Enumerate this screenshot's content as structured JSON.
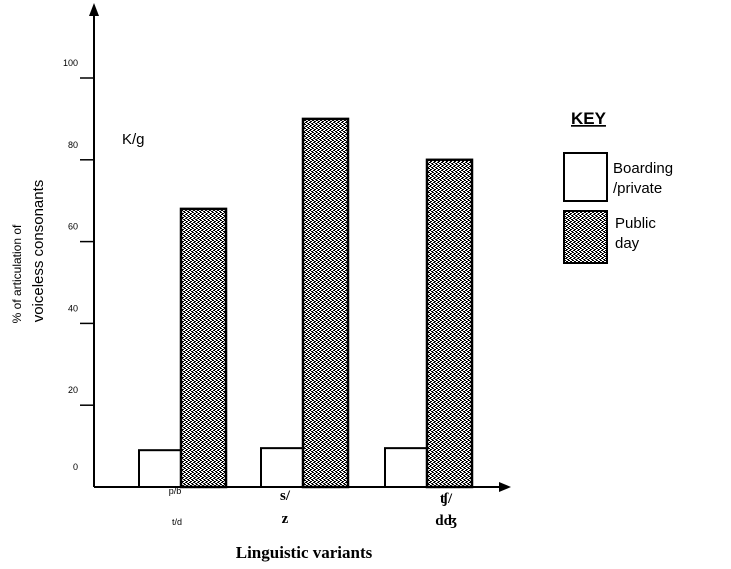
{
  "chart_data": {
    "type": "bar",
    "xlabel": "Linguistic variants",
    "ylabel_line1": "% of articulation of",
    "ylabel_line2": "voiceless consonants",
    "annotation": "K/g",
    "ylim": [
      0,
      100
    ],
    "yticks": [
      0,
      20,
      40,
      60,
      80,
      100
    ],
    "grid": false,
    "legend_position": "right",
    "categories": [
      {
        "line1": "p/b",
        "line2": "t/d",
        "style": "small"
      },
      {
        "line1": "s/",
        "line2": "z",
        "style": "big"
      },
      {
        "line1": "ʧ/",
        "line2": "dʤ",
        "style": "big"
      }
    ],
    "series": [
      {
        "name": "Boarding /private",
        "values": [
          9,
          9.5,
          9.5
        ],
        "fill": "#ffffff"
      },
      {
        "name": "Public day",
        "values": [
          68,
          90,
          80
        ],
        "fill": "pattern"
      }
    ],
    "key": {
      "title": "KEY",
      "entries": [
        {
          "line1": "Boarding",
          "line2": "/private"
        },
        {
          "line1": "Public",
          "line2": "day"
        }
      ]
    }
  }
}
